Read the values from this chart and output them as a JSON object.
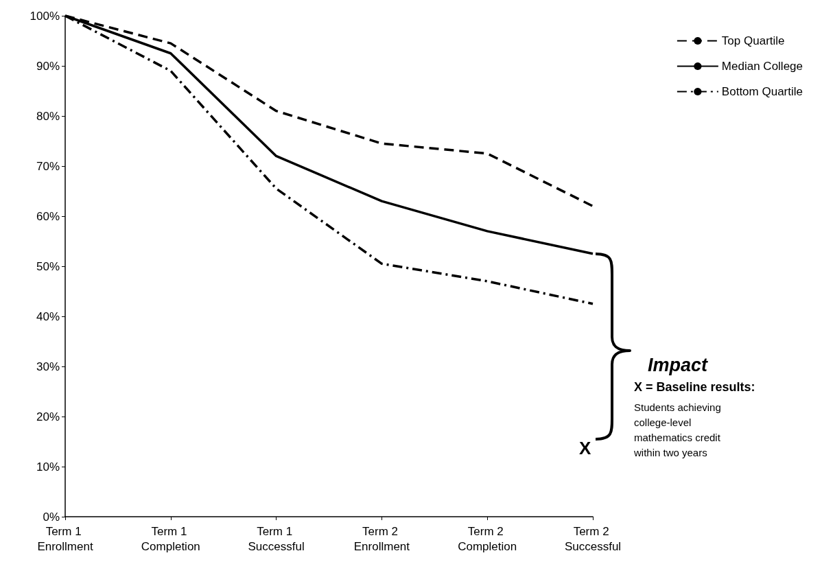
{
  "chart_data": {
    "type": "line",
    "categories": [
      "Term 1 Enrollment",
      "Term 1 Completion",
      "Term 1 Successful",
      "Term 2 Enrollment",
      "Term 2 Completion",
      "Term 2 Successful"
    ],
    "series": [
      {
        "name": "Top Quartile",
        "color": "#000000",
        "line_style": "dashed",
        "values": [
          100,
          94.5,
          81,
          74.5,
          72.5,
          62
        ]
      },
      {
        "name": "Median College",
        "color": "#000000",
        "line_style": "solid",
        "values": [
          100,
          92.5,
          72,
          63,
          57,
          52.5
        ]
      },
      {
        "name": "Bottom Quartile",
        "color": "#000000",
        "line_style": "dashdot",
        "values": [
          100,
          89,
          65.5,
          50.5,
          47,
          42.5
        ]
      }
    ],
    "ylim": [
      0,
      100
    ],
    "yticks": [
      {
        "value": 0,
        "label": "0%"
      },
      {
        "value": 10,
        "label": "10%"
      },
      {
        "value": 20,
        "label": "20%"
      },
      {
        "value": 30,
        "label": "30%"
      },
      {
        "value": 40,
        "label": "40%"
      },
      {
        "value": 50,
        "label": "50%"
      },
      {
        "value": 60,
        "label": "60%"
      },
      {
        "value": 70,
        "label": "70%"
      },
      {
        "value": 80,
        "label": "80%"
      },
      {
        "value": 90,
        "label": "90%"
      },
      {
        "value": 100,
        "label": "100%"
      }
    ],
    "grid": false,
    "legend": "top right",
    "marker": "none",
    "annotations": [
      "Impact",
      "X = Baseline results:",
      "Students achieving college-level mathematics credit within two years",
      "X"
    ]
  }
}
